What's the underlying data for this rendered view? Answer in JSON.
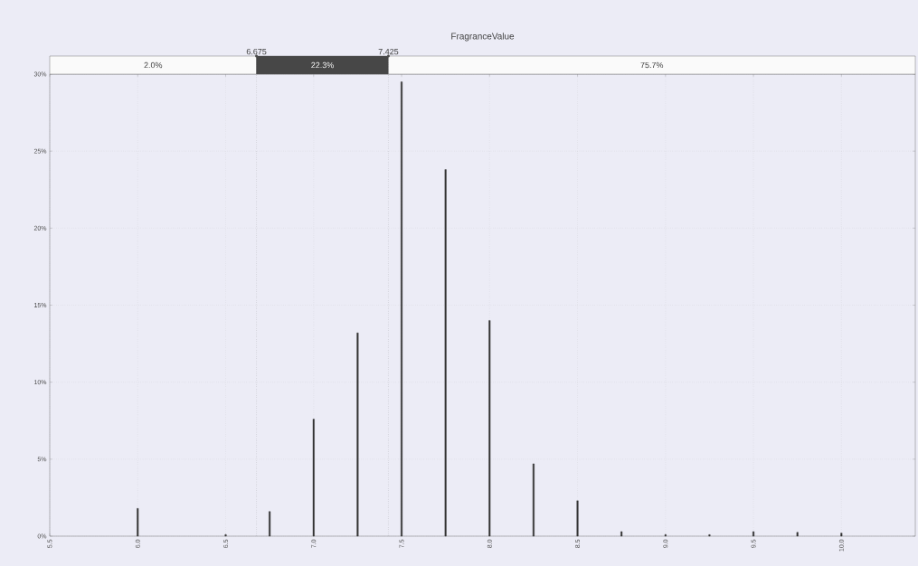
{
  "chart_data": {
    "type": "bar",
    "title": "FragranceValue",
    "x": [
      6.0,
      6.5,
      6.75,
      7.0,
      7.25,
      7.5,
      7.75,
      8.0,
      8.25,
      8.5,
      8.75,
      9.0,
      9.25,
      9.5,
      9.75,
      10.0
    ],
    "values": [
      1.8,
      0.1,
      1.6,
      7.6,
      13.2,
      29.5,
      23.8,
      14.0,
      4.7,
      2.3,
      0.3,
      0.1,
      0.1,
      0.3,
      0.25,
      0.2
    ],
    "color": "#333333",
    "xlim": [
      5.5,
      10.42
    ],
    "xticks": [
      {
        "value": 5.5,
        "label": "5.5"
      },
      {
        "value": 6.0,
        "label": "6.0"
      },
      {
        "value": 6.5,
        "label": "6.5"
      },
      {
        "value": 7.0,
        "label": "7.0"
      },
      {
        "value": 7.5,
        "label": "7.5"
      },
      {
        "value": 8.0,
        "label": "8.0"
      },
      {
        "value": 8.5,
        "label": "8.5"
      },
      {
        "value": 9.0,
        "label": "9.0"
      },
      {
        "value": 9.5,
        "label": "9.5"
      },
      {
        "value": 10.0,
        "label": "10.0"
      }
    ],
    "ylim": [
      0,
      30
    ],
    "yticks": [
      {
        "value": 0,
        "label": "0%"
      },
      {
        "value": 5,
        "label": "5%"
      },
      {
        "value": 10,
        "label": "10%"
      },
      {
        "value": 15,
        "label": "15%"
      },
      {
        "value": 20,
        "label": "20%"
      },
      {
        "value": 25,
        "label": "25%"
      },
      {
        "value": 30,
        "label": "30%"
      }
    ],
    "grid": true,
    "ref_lines": [
      {
        "axis": "x",
        "value": 6.675,
        "label": "6.675",
        "line_style": "dotted"
      },
      {
        "axis": "x",
        "value": 7.425,
        "label": "7.425",
        "line_style": "dotted"
      }
    ],
    "annotations": [
      "2.0%",
      "22.3%",
      "75.7%"
    ]
  }
}
